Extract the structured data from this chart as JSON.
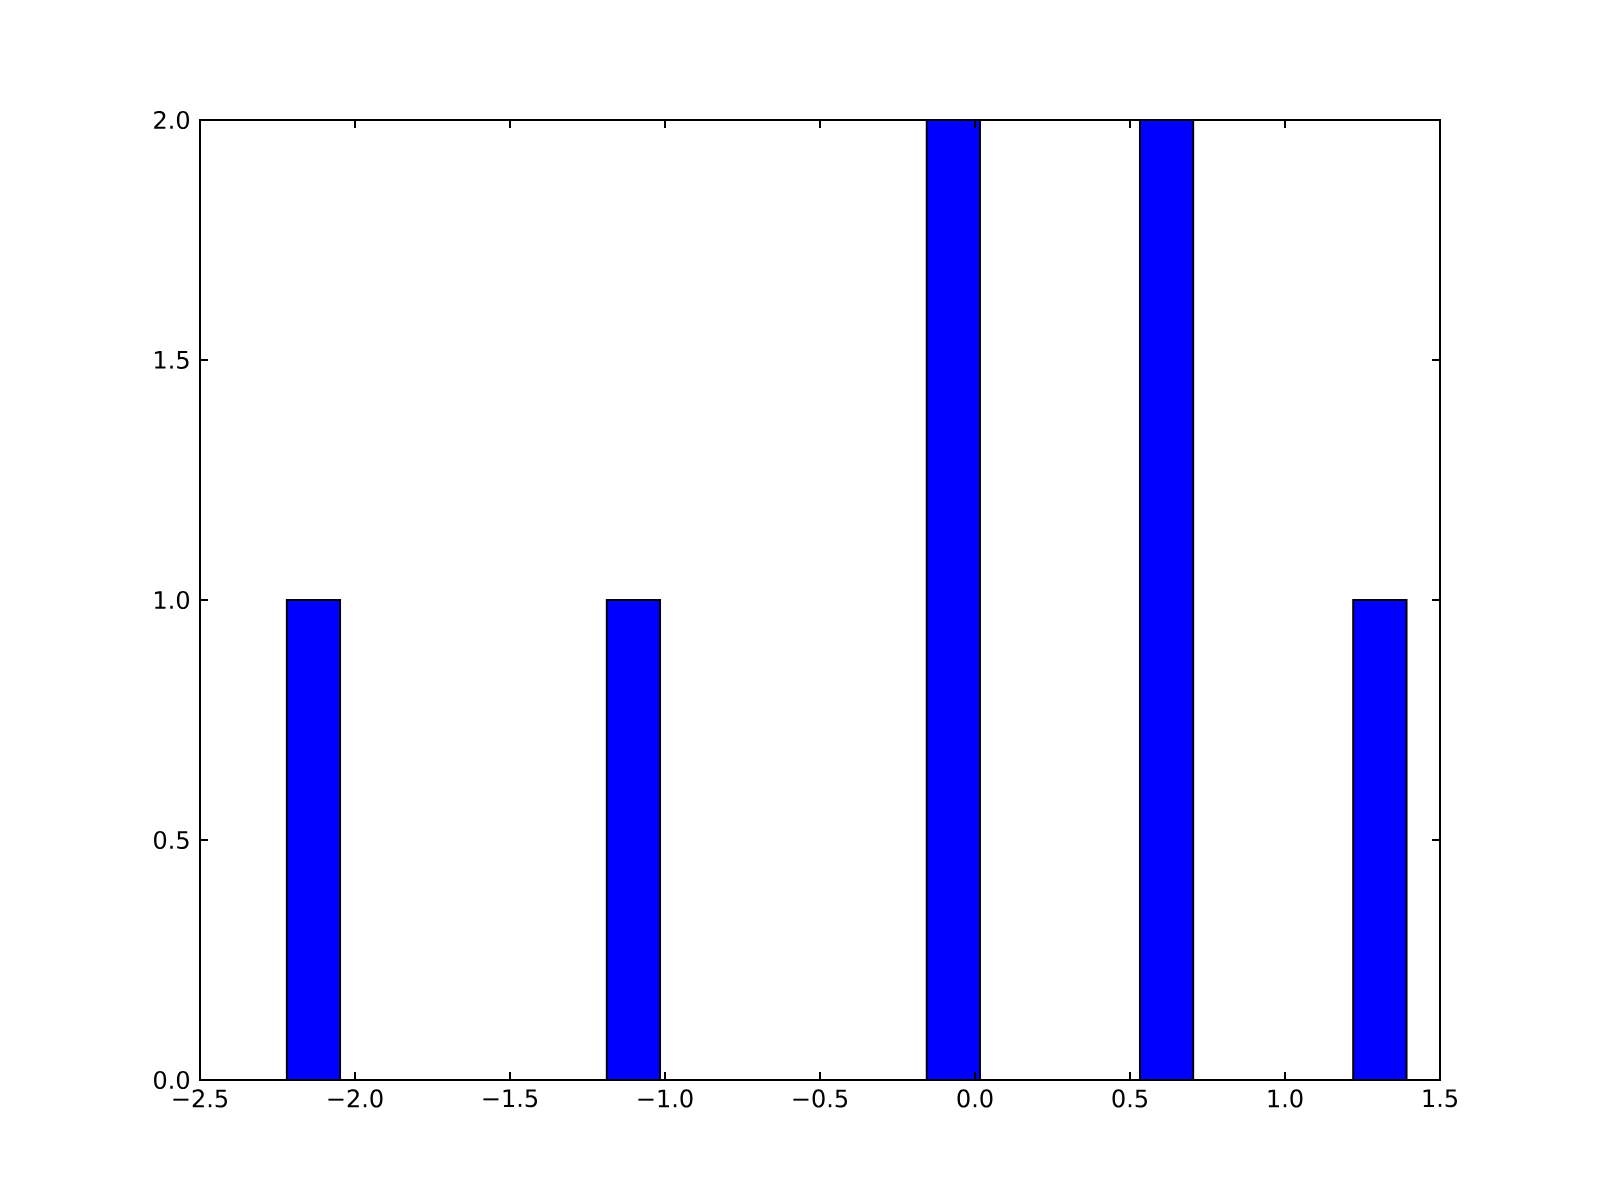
{
  "chart_data": {
    "type": "histogram",
    "color": "#0000ff",
    "bins": [
      -2.22,
      -2.048,
      -1.876,
      -1.704,
      -1.532,
      -1.36,
      -1.188,
      -1.016,
      -0.844,
      -0.672,
      -0.5,
      -0.328,
      -0.156,
      0.016,
      0.188,
      0.36,
      0.532,
      0.704,
      0.876,
      1.048,
      1.22,
      1.392
    ],
    "values": [
      1,
      0,
      0,
      0,
      0,
      0,
      1,
      0,
      0,
      0,
      0,
      0,
      2,
      0,
      0,
      0,
      2,
      0,
      0,
      0,
      1
    ],
    "xlim": [
      -2.5,
      1.5
    ],
    "xticks": [
      {
        "value": -2.5,
        "label": "−2.5"
      },
      {
        "value": -2.0,
        "label": "−2.0"
      },
      {
        "value": -1.5,
        "label": "−1.5"
      },
      {
        "value": -1.0,
        "label": "−1.0"
      },
      {
        "value": -0.5,
        "label": "−0.5"
      },
      {
        "value": 0.0,
        "label": "0.0"
      },
      {
        "value": 0.5,
        "label": "0.5"
      },
      {
        "value": 1.0,
        "label": "1.0"
      },
      {
        "value": 1.5,
        "label": "1.5"
      }
    ],
    "ylim": [
      0,
      2
    ],
    "yticks": [
      {
        "value": 0,
        "label": "0.0"
      },
      {
        "value": 0.5,
        "label": "0.5"
      },
      {
        "value": 1.0,
        "label": "1.0"
      },
      {
        "value": 1.5,
        "label": "1.5"
      },
      {
        "value": 2.0,
        "label": "2.0"
      }
    ]
  }
}
